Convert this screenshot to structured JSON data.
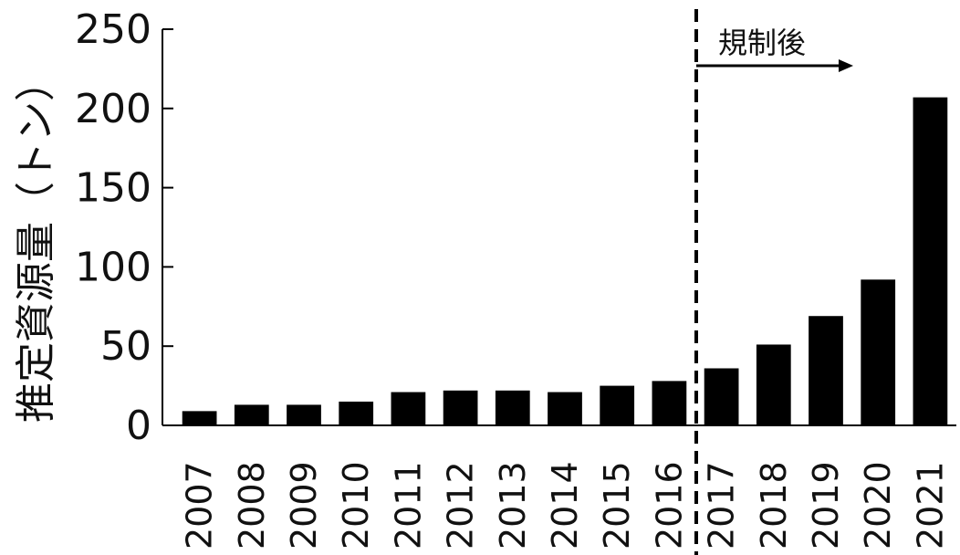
{
  "chart_data": {
    "type": "bar",
    "title": "",
    "xlabel": "",
    "ylabel": "推定資源量（トン）",
    "categories": [
      "2007",
      "2008",
      "2009",
      "2010",
      "2011",
      "2012",
      "2013",
      "2014",
      "2015",
      "2016",
      "2017",
      "2018",
      "2019",
      "2020",
      "2021"
    ],
    "values": [
      9,
      13,
      13,
      15,
      21,
      22,
      22,
      21,
      25,
      28,
      36,
      51,
      69,
      92,
      207
    ],
    "ylim": [
      0,
      250
    ],
    "yticks": [
      0,
      50,
      100,
      150,
      200,
      250
    ],
    "grid": false,
    "bar_color": "#000000",
    "annotation": {
      "label": "規制後",
      "boundary_between": [
        "2016",
        "2017"
      ],
      "line_style": "dashed"
    }
  }
}
